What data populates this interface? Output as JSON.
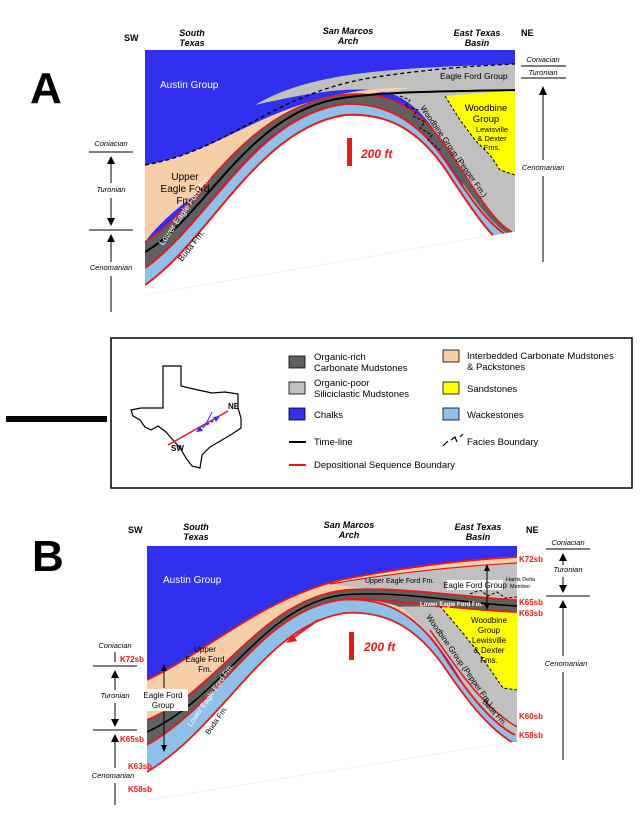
{
  "panelA": {
    "letter": "A",
    "sw": "SW",
    "ne": "NE",
    "south_texas": [
      "South",
      "Texas"
    ],
    "san_marcos": [
      "San Marcos",
      "Arch"
    ],
    "east_texas": [
      "East Texas",
      "Basin"
    ],
    "austin": "Austin Group",
    "eagle_ford_group": "Eagle Ford Group",
    "woodbine": [
      "Woodbine",
      "Group"
    ],
    "lewisville": [
      "Lewisville",
      "& Dexter",
      "Fms."
    ],
    "woodbine_pepper": "Woodbine Group (Pepper Fm.)",
    "upper_ef": [
      "Upper",
      "Eagle Ford",
      "Fm."
    ],
    "lower_ef": "Lower Eagle Ford Fm.",
    "buda": "Buda Fm.",
    "scale": "200 ft",
    "left_coniacian": "Coniacian",
    "left_turonian": "Turonian",
    "left_cenomanian": "Cenomanian",
    "right_coniacian": "Coniacian",
    "right_turonian": "Turonian",
    "right_cenomanian": "Cenomanian"
  },
  "legend": {
    "organic_rich": [
      "Organic-rich",
      "Carbonate Mudstones"
    ],
    "organic_poor": [
      "Organic-poor",
      "Siliciclastic Mudstones"
    ],
    "chalks": "Chalks",
    "interbedded": [
      "Interbedded Carbonate Mudstones",
      "& Packstones"
    ],
    "sandstones": "Sandstones",
    "wackestones": "Wackestones",
    "timeline": "Time-line",
    "facies": "Facies Boundary",
    "seq_boundary": "Depositional Sequence Boundary",
    "map_ne": "NE",
    "map_sw": "SW"
  },
  "panelB": {
    "letter": "B",
    "sw": "SW",
    "ne": "NE",
    "south_texas": [
      "South",
      "Texas"
    ],
    "san_marcos": [
      "San Marcos",
      "Arch"
    ],
    "east_texas": [
      "East Texas",
      "Basin"
    ],
    "austin": "Austin Group",
    "upper_ef_top": "Upper Eagle Ford Fm.",
    "eagle_ford_group_r": "Eagle Ford Group",
    "harris_delta": [
      "Harris Delta",
      "Member"
    ],
    "lower_ef_r": "Lower Eagle Ford Fm.",
    "woodbine": [
      "Woodbine",
      "Group",
      "Lewisville",
      "& Dexter",
      "Fms."
    ],
    "woodbine_pepper": "Woodbine Group (Pepper Fm.)",
    "buda_r": "Buda Fm.",
    "upper_ef_left": [
      "Upper",
      "Eagle Ford",
      "Fm."
    ],
    "eagle_ford_group_l": [
      "Eagle Ford",
      "Group"
    ],
    "lower_ef": "Lower Eagle Ford Fm.",
    "buda_l": "Buda Fm.",
    "scale": "200 ft",
    "k72_l": "K72sb",
    "k65_l": "K65sb",
    "k63_l": "K63sb",
    "k58_l": "K58sb",
    "k72_r": "K72sb",
    "k65_r": "K65sb",
    "k63_r": "K63sb",
    "k60_r": "K60sb",
    "k58_r": "K58sb",
    "left_coniacian": "Coniacian",
    "left_turonian": "Turonian",
    "left_cenomanian": "Cenomanian",
    "right_coniacian": "Coniacian",
    "right_turonian": "Turonian",
    "right_cenomanian": "Cenomanian"
  },
  "colors": {
    "chalk": "#3030ee",
    "interbedded": "#f7cfa6",
    "organic_rich": "#606060",
    "organic_poor": "#c0c0c0",
    "sandstone": "#ffff00",
    "wackestone": "#8fc0ea",
    "sequence": "#e41a1c"
  }
}
